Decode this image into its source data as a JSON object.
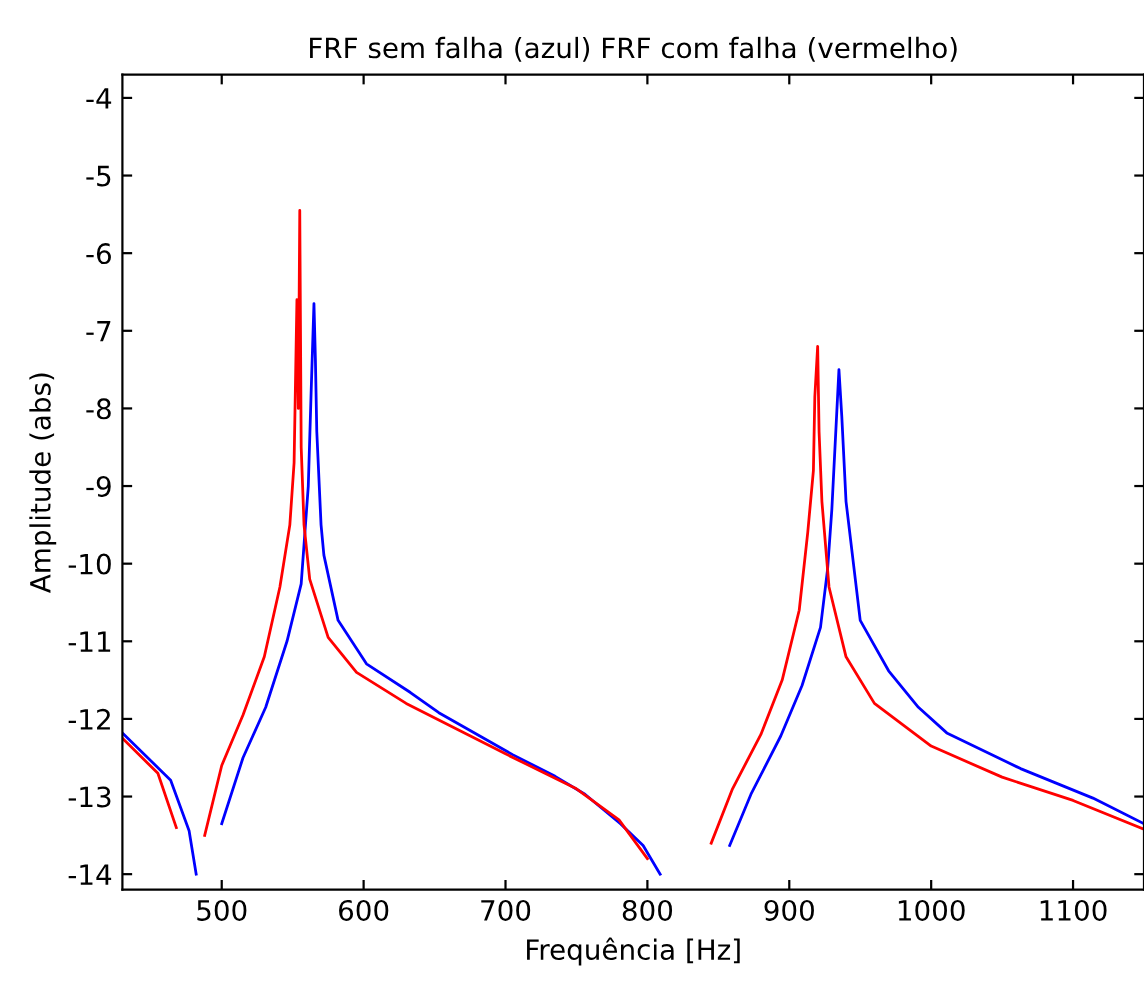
{
  "chart_data": {
    "type": "line",
    "title": "FRF sem falha (azul) FRF com falha (vermelho)",
    "xlabel": "Frequência [Hz]",
    "ylabel": "Amplitude (abs)",
    "xlim": [
      430,
      1150
    ],
    "ylim": [
      -14.2,
      -3.7
    ],
    "xticks": [
      500,
      600,
      700,
      800,
      900,
      1000,
      1100
    ],
    "yticks": [
      -4,
      -5,
      -6,
      -7,
      -8,
      -9,
      -10,
      -11,
      -12,
      -13,
      -14
    ],
    "grid": false,
    "legend": false,
    "marker": "none",
    "line_style": "solid",
    "series": [
      {
        "color": "#0000ff",
        "x": [
          430,
          464,
          477,
          482,
          483,
          493,
          495,
          500,
          515,
          531,
          546,
          556,
          561,
          563,
          565,
          566,
          567,
          570,
          572,
          582,
          602,
          633,
          653,
          705,
          735,
          756,
          781,
          797,
          809,
          815,
          848,
          850,
          858,
          873,
          894,
          909,
          922,
          927,
          930,
          935,
          937,
          940,
          950,
          970,
          991,
          1011,
          1063,
          1114,
          1150
        ],
        "values": [
          -12.18,
          -12.79,
          -13.44,
          -14.0,
          null,
          null,
          null,
          -13.35,
          -12.5,
          -11.85,
          -11.0,
          -10.26,
          -9.0,
          -7.8,
          -6.65,
          -7.35,
          -8.3,
          -9.5,
          -9.89,
          -10.73,
          -11.29,
          -11.66,
          -11.92,
          -12.46,
          -12.74,
          -12.97,
          -13.35,
          -13.63,
          -14.0,
          null,
          null,
          null,
          -13.63,
          -12.97,
          -12.22,
          -11.57,
          -10.82,
          -10.07,
          -9.3,
          -7.5,
          -8.1,
          -9.2,
          -10.73,
          -11.38,
          -11.85,
          -12.18,
          -12.64,
          -13.02,
          -13.35
        ]
      },
      {
        "color": "#ff0000",
        "x": [
          430,
          455,
          468,
          474,
          478,
          483,
          488,
          500,
          515,
          530,
          541,
          548,
          551,
          553,
          554,
          555,
          556,
          558,
          562,
          575,
          595,
          630,
          700,
          750,
          780,
          800,
          808,
          823,
          838,
          845,
          860,
          880,
          895,
          907,
          913,
          917,
          918,
          920,
          921,
          923,
          928,
          940,
          960,
          1000,
          1050,
          1100,
          1150
        ],
        "values": [
          -12.25,
          -12.7,
          -13.4,
          null,
          null,
          null,
          -13.5,
          -12.6,
          -11.95,
          -11.2,
          -10.3,
          -9.5,
          -8.7,
          -6.6,
          -8.0,
          -5.45,
          -8.5,
          -9.5,
          -10.2,
          -10.95,
          -11.4,
          -11.8,
          -12.45,
          -12.9,
          -13.3,
          -13.8,
          null,
          null,
          null,
          -13.6,
          -12.9,
          -12.2,
          -11.5,
          -10.6,
          -9.6,
          -8.8,
          -7.85,
          -7.2,
          -8.3,
          -9.2,
          -10.3,
          -11.2,
          -11.8,
          -12.35,
          -12.75,
          -13.05,
          -13.42
        ]
      }
    ]
  }
}
